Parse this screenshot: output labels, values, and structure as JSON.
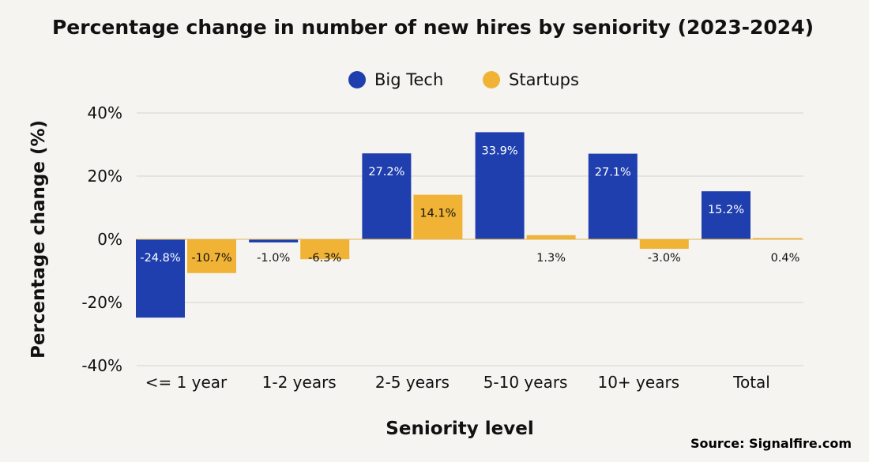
{
  "chart_data": {
    "type": "bar",
    "title": "Percentage change in number of new hires by seniority (2023-2024)",
    "xlabel": "Seniority level",
    "ylabel": "Percentage change (%)",
    "categories": [
      "<= 1 year",
      "1-2 years",
      "2-5 years",
      "5-10 years",
      "10+ years",
      "Total"
    ],
    "series": [
      {
        "name": "Big Tech",
        "color": "#1f3fae",
        "values": [
          -24.8,
          -1.0,
          27.2,
          33.9,
          27.1,
          15.2
        ],
        "labels": [
          "-24.8%",
          "-1.0%",
          "27.2%",
          "33.9%",
          "27.1%",
          "15.2%"
        ]
      },
      {
        "name": "Startups",
        "color": "#f0b335",
        "values": [
          -10.7,
          -6.3,
          14.1,
          1.3,
          -3.0,
          0.4
        ],
        "labels": [
          "-10.7%",
          "-6.3%",
          "14.1%",
          "1.3%",
          "-3.0%",
          "0.4%"
        ]
      }
    ],
    "ylim": [
      -40,
      40
    ],
    "yticks": [
      40,
      20,
      0,
      -20,
      -40
    ],
    "ytick_labels": [
      "40%",
      "20%",
      "0%",
      "-20%",
      "-40%"
    ],
    "grid": true,
    "legend_position": "top-center"
  },
  "source": "Source: Signalfire.com"
}
